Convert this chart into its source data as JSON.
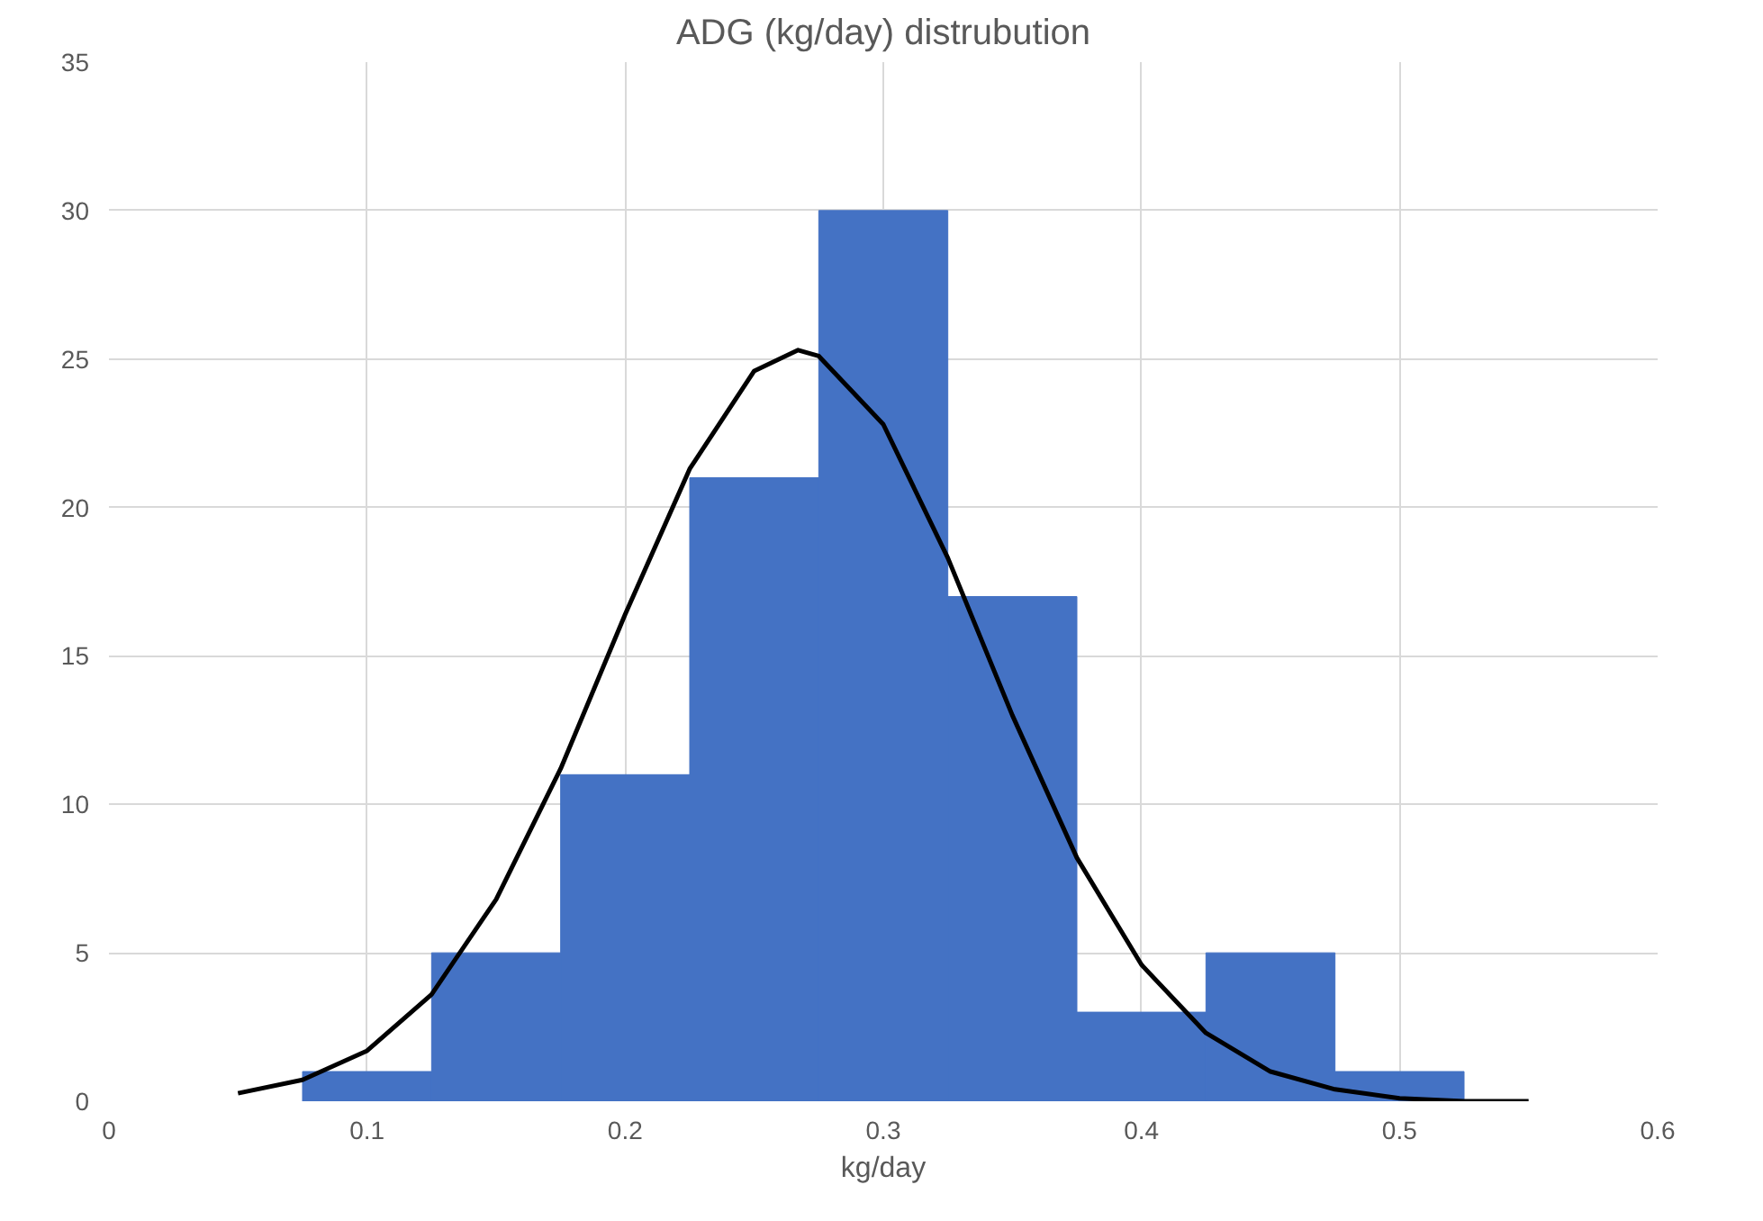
{
  "chart_data": {
    "type": "histogram",
    "title": "ADG (kg/day) distrubution",
    "xlabel": "kg/day",
    "xlim": [
      0,
      0.6
    ],
    "xticks": [
      0,
      0.1,
      0.2,
      0.3,
      0.4,
      0.5,
      0.6
    ],
    "ylim": [
      0,
      35
    ],
    "yticks": [
      0,
      5,
      10,
      15,
      20,
      25,
      30,
      35
    ],
    "grid": true,
    "series": [
      {
        "color": "#4472c4",
        "bins": [
          0.075,
          0.125,
          0.175,
          0.225,
          0.275,
          0.325,
          0.375,
          0.425,
          0.475,
          0.525
        ],
        "values": [
          1,
          5,
          11,
          21,
          30,
          17,
          3,
          5,
          1
        ]
      },
      {
        "type": "line",
        "color": "#000000",
        "x": [
          0.05,
          0.075,
          0.1,
          0.125,
          0.15,
          0.175,
          0.2,
          0.225,
          0.25,
          0.267,
          0.275,
          0.3,
          0.325,
          0.35,
          0.375,
          0.4,
          0.425,
          0.45,
          0.475,
          0.5,
          0.525,
          0.55
        ],
        "values": [
          0.27,
          0.72,
          1.7,
          3.6,
          6.8,
          11.2,
          16.4,
          21.3,
          24.6,
          25.3,
          25.1,
          22.8,
          18.3,
          13.0,
          8.2,
          4.6,
          2.3,
          1.0,
          0.4,
          0.1,
          0.0,
          0.0
        ]
      }
    ]
  }
}
